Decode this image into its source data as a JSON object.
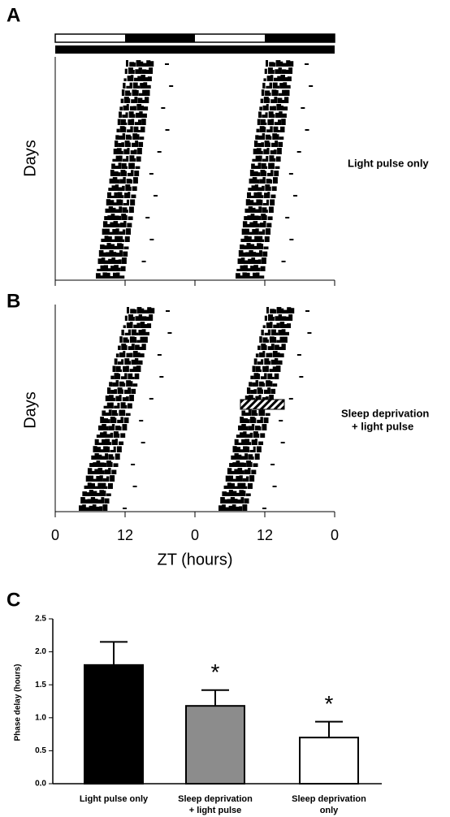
{
  "panels": {
    "a": {
      "label": "A",
      "y_label": "Days",
      "annotation": "Light pulse only"
    },
    "b": {
      "label": "B",
      "y_label": "Days",
      "annotation_lines": [
        "Sleep deprivation",
        "+ light pulse"
      ],
      "x_label": "ZT (hours)",
      "xlim": [
        0,
        48
      ],
      "xticks": [
        0,
        12,
        {
          "value": 24,
          "label": "0"
        },
        {
          "value": 36,
          "label": "12"
        },
        {
          "value": 48,
          "label": "0"
        }
      ]
    }
  },
  "chart_data": {
    "type": "bar",
    "panel_label": "C",
    "y_label": "Phase delay  (hours)",
    "categories": [
      [
        "Light pulse only"
      ],
      [
        "Sleep deprivation",
        "+ light pulse"
      ],
      [
        "Sleep deprivation",
        "only"
      ]
    ],
    "series": [
      {
        "name": "Phase delay",
        "values": [
          1.8,
          1.18,
          0.7
        ],
        "errors": [
          0.35,
          0.24,
          0.24
        ]
      }
    ],
    "colors": [
      "#000000",
      "#8c8c8c",
      "#ffffff"
    ],
    "annotations": [
      null,
      "*",
      "*"
    ],
    "ylim": [
      0,
      2.5
    ],
    "yticks": [
      {
        "value": 0,
        "label": "0.0"
      },
      0.5,
      {
        "value": 1,
        "label": "1.0"
      },
      1.5,
      {
        "value": 2,
        "label": "2.0"
      },
      2.5
    ]
  }
}
